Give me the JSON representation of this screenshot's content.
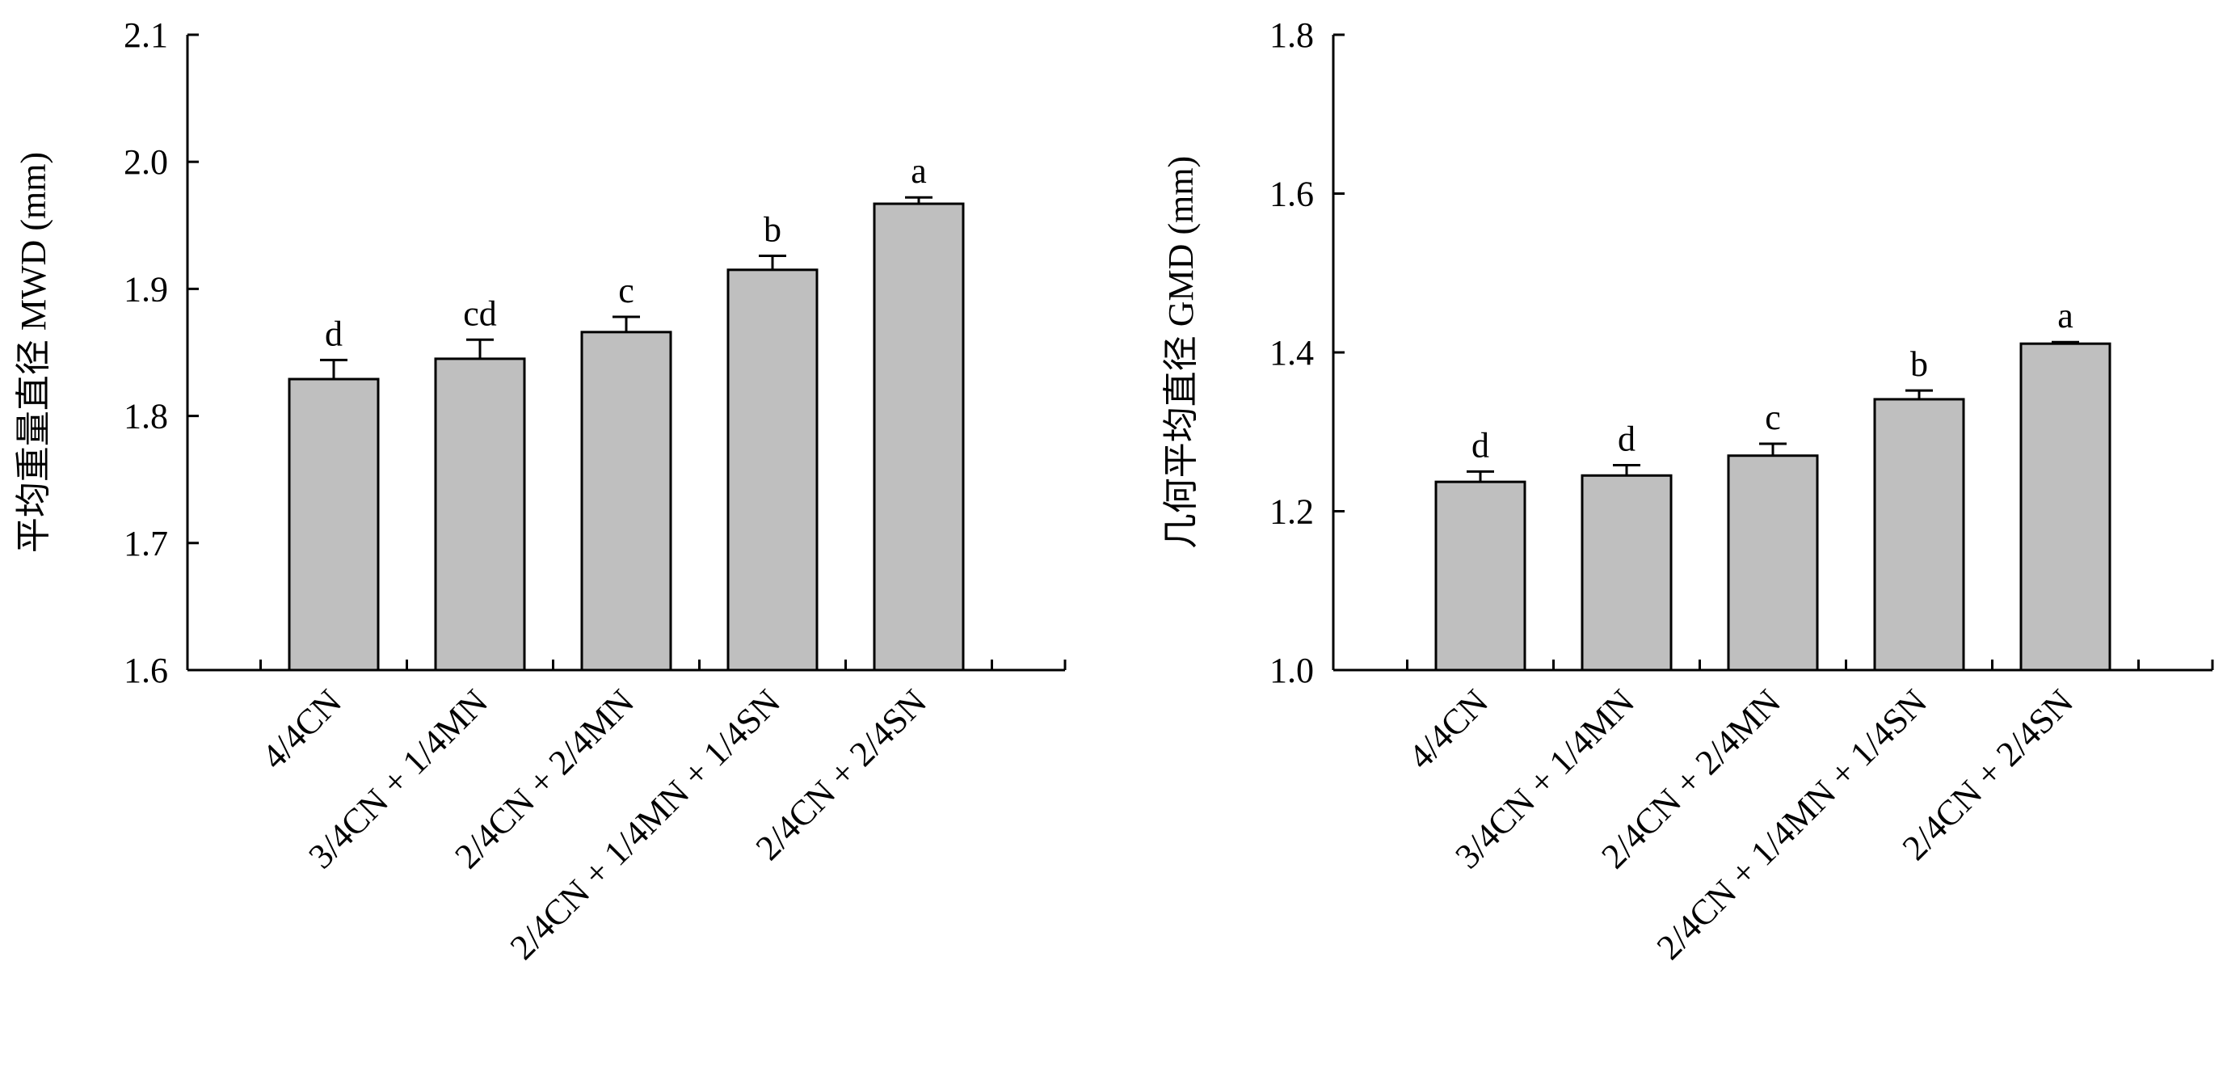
{
  "chart_data": [
    {
      "type": "bar",
      "title": "",
      "xlabel": "",
      "ylabel": "平均重量直径 MWD (mm)",
      "ylim": [
        1.6,
        2.1
      ],
      "yticks": [
        "1.6",
        "1.7",
        "1.8",
        "1.9",
        "2.0",
        "2.1"
      ],
      "categories": [
        "4/4CN",
        "3/4CN + 1/4MN",
        "2/4CN + 2/4MN",
        "2/4CN + 1/4MN + 1/4SN",
        "2/4CN + 2/4SN"
      ],
      "values": [
        1.829,
        1.845,
        1.866,
        1.915,
        1.967
      ],
      "errors": [
        0.015,
        0.015,
        0.012,
        0.011,
        0.005
      ],
      "significance": [
        "d",
        "cd",
        "c",
        "b",
        "a"
      ],
      "bar_color": "#bfbfbf",
      "grid": false
    },
    {
      "type": "bar",
      "title": "",
      "xlabel": "",
      "ylabel": "几何平均直径 GMD (mm)",
      "ylim": [
        1.0,
        1.8
      ],
      "yticks": [
        "1.0",
        "1.2",
        "1.4",
        "1.6",
        "1.8"
      ],
      "categories": [
        "4/4CN",
        "3/4CN + 1/4MN",
        "2/4CN + 2/4MN",
        "2/4CN + 1/4MN + 1/4SN",
        "2/4CN + 2/4SN"
      ],
      "values": [
        1.237,
        1.245,
        1.27,
        1.341,
        1.411
      ],
      "errors": [
        0.013,
        0.013,
        0.015,
        0.011,
        0.002
      ],
      "significance": [
        "d",
        "d",
        "c",
        "b",
        "a"
      ],
      "bar_color": "#bfbfbf",
      "grid": false
    }
  ]
}
